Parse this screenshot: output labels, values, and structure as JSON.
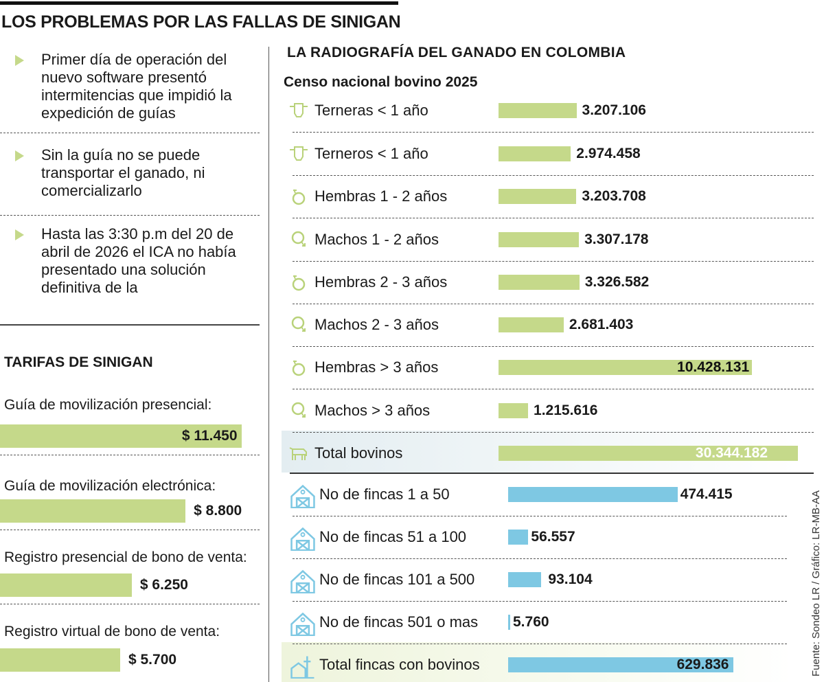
{
  "title": "LOS PROBLEMAS POR LAS FALLAS DE SINIGAN",
  "bullets": [
    "Primer día de operación del nuevo software presentó intermitencias que impidió la expedición de guías",
    "Sin la guía no se puede transportar el ganado, ni comercializarlo",
    "Hasta las 3:30 p.m del 20 de abril de 2026 el ICA no había presentado una solución definitiva de la"
  ],
  "tarifas": {
    "heading": "TARIFAS DE SINIGAN",
    "items": [
      {
        "label": "Guía de movilización presencial:",
        "value": 11450,
        "display": "$ 11.450"
      },
      {
        "label": "Guía de movilización electrónica:",
        "value": 8800,
        "display": "$ 8.800"
      },
      {
        "label": "Registro presencial de bono de venta:",
        "value": 6250,
        "display": "$ 6.250"
      },
      {
        "label": "Registro virtual de bono de venta:",
        "value": 5700,
        "display": "$ 5.700"
      }
    ]
  },
  "right": {
    "heading": "LA RADIOGRAFÍA DEL GANADO EN COLOMBIA",
    "subtitle": "Censo nacional bovino 2025",
    "source": "Fuente: Sondeo LR / Gráfico: LR-MB-AA"
  },
  "chart_data": [
    {
      "type": "bar",
      "orientation": "horizontal",
      "title": "Censo nacional bovino 2025",
      "categories": [
        "Terneras < 1 año",
        "Terneros < 1 año",
        "Hembras 1 - 2 años",
        "Machos 1 - 2 años",
        "Hembras 2 - 3 años",
        "Machos 2 - 3 años",
        "Hembras > 3 años",
        "Machos > 3 años",
        "Total bovinos"
      ],
      "icons": [
        "calf-head-icon",
        "calf-head-icon",
        "female-icon",
        "male-icon",
        "female-icon",
        "male-icon",
        "female-icon",
        "male-icon",
        "cow-icon"
      ],
      "values": [
        3207106,
        2974458,
        3203708,
        3307178,
        3326582,
        2681403,
        10428131,
        1215616,
        30344182
      ],
      "labels": [
        "3.207.106",
        "2.974.458",
        "3.203.708",
        "3.307.178",
        "3.326.582",
        "2.681.403",
        "10.428.131",
        "1.215.616",
        "30.344.182"
      ],
      "color": "#c5d98a",
      "total_bar_truncated": true
    },
    {
      "type": "bar",
      "orientation": "horizontal",
      "categories": [
        "No de fincas 1 a 50",
        "No de fincas 51 a 100",
        "No de fincas 101 a 500",
        "No de fincas 501 o mas",
        "Total fincas con bovinos"
      ],
      "icons": [
        "barn-icon",
        "barn-icon",
        "barn-icon",
        "barn-icon",
        "farm-icon"
      ],
      "values": [
        474415,
        56557,
        93104,
        5760,
        629836
      ],
      "labels": [
        "474.415",
        "56.557",
        "93.104",
        "5.760",
        "629.836"
      ],
      "color": "#7ec8e3"
    }
  ]
}
